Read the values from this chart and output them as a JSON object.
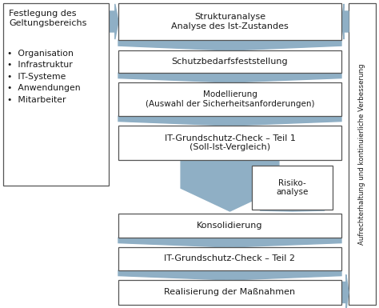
{
  "fig_width": 4.74,
  "fig_height": 3.85,
  "dpi": 100,
  "bg_color": "#ffffff",
  "box_edge_color": "#555555",
  "box_fill": "#ffffff",
  "arrow_color": "#8fafc5",
  "text_color": "#1a1a1a",
  "left_box_title": "Festlegung des\nGeltungsbereichs",
  "left_box_bullets": "•  Organisation\n•  Infrastruktur\n•  IT-Systeme\n•  Anwendungen\n•  Mitarbeiter",
  "right_label": "Aufrechterhaltung und kontinuierliche Verbesserung",
  "risiko_label": "Risiko-\nanalyse",
  "boxes": [
    {
      "label": "Strukturanalyse\nAnalyse des Ist-Zustandes",
      "fs": 8.0
    },
    {
      "label": "Schutzbedarfsfeststellung",
      "fs": 8.0
    },
    {
      "label": "Modellierung\n(Auswahl der Sicherheitsanforderungen)",
      "fs": 7.5
    },
    {
      "label": "IT-Grundschutz-Check – Teil 1\n(Soll-Ist-Vergleich)",
      "fs": 8.0
    },
    {
      "label": "Konsolidierung",
      "fs": 8.0
    },
    {
      "label": "IT-Grundschutz-Check – Teil 2",
      "fs": 8.0
    },
    {
      "label": "Realisierung der Maßnahmen",
      "fs": 8.0
    }
  ]
}
